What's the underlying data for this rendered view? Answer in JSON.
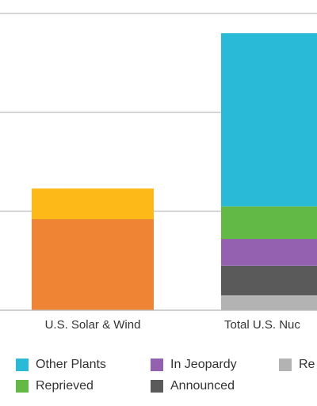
{
  "chart_data": {
    "type": "bar",
    "stacked": true,
    "categories": [
      "U.S. Solar & Wind",
      "Total U.S. Nuc"
    ],
    "series": [
      {
        "name": "",
        "color": "#EE8434",
        "values": [
          92,
          0
        ]
      },
      {
        "name": "",
        "color": "#FDB918",
        "values": [
          31,
          0
        ]
      },
      {
        "name": "Re",
        "color": "#B3B3B3",
        "values": [
          0,
          15
        ]
      },
      {
        "name": "Announced",
        "color": "#5A5A5A",
        "values": [
          0,
          30
        ]
      },
      {
        "name": "In Jeopardy",
        "color": "#9361AF",
        "values": [
          0,
          27
        ]
      },
      {
        "name": "Reprieved",
        "color": "#63B946",
        "values": [
          0,
          33
        ]
      },
      {
        "name": "Other Plants",
        "color": "#29BAD7",
        "values": [
          0,
          175
        ]
      }
    ],
    "ylim": [
      0,
      300
    ],
    "gridlines": [
      0,
      100,
      200,
      300
    ],
    "grid": true,
    "title": "",
    "xlabel": "",
    "ylabel": ""
  },
  "legend": [
    {
      "label": "Other Plants",
      "color": "#29BAD7"
    },
    {
      "label": "In Jeopardy",
      "color": "#9361AF"
    },
    {
      "label": "Re",
      "color": "#B3B3B3"
    },
    {
      "label": "Reprieved",
      "color": "#63B946"
    },
    {
      "label": "Announced",
      "color": "#5A5A5A"
    }
  ]
}
